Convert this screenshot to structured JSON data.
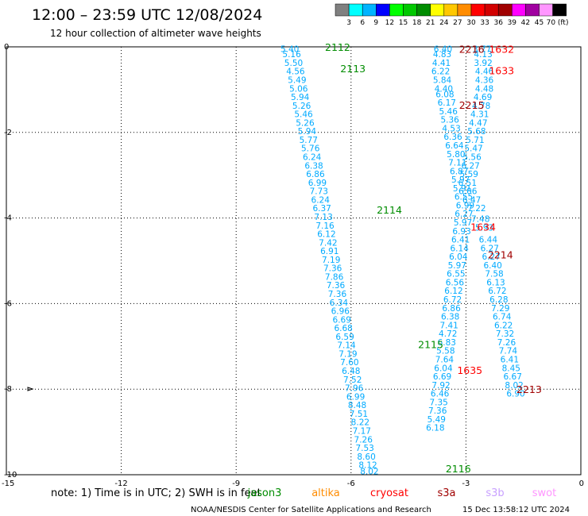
{
  "header": {
    "title": "12:00 – 23:59 UTC 12/08/2024",
    "subtitle": "12 hour collection of altimeter wave heights"
  },
  "colorbar": {
    "colors": [
      "#808080",
      "#00ffff",
      "#00b4ff",
      "#0000ff",
      "#00ff00",
      "#00c800",
      "#008c00",
      "#ffff00",
      "#ffc800",
      "#ff8c00",
      "#ff0000",
      "#d20000",
      "#a00000",
      "#ff00ff",
      "#a000a0",
      "#ff96ff",
      "#000000"
    ],
    "labels": [
      "3",
      "6",
      "9",
      "12",
      "15",
      "18",
      "21",
      "24",
      "27",
      "30",
      "33",
      "36",
      "39",
      "42",
      "45",
      "70 (ft)"
    ]
  },
  "footer": {
    "note": "note: 1) Time is in UTC; 2) SWH is in feet",
    "satellites": [
      {
        "name": "jason3",
        "color": "#008c00"
      },
      {
        "name": "altika",
        "color": "#ff8c00"
      },
      {
        "name": "cryosat",
        "color": "#ff0000"
      },
      {
        "name": "s3a",
        "color": "#a00000"
      },
      {
        "name": "s3b",
        "color": "#c8a0ff"
      },
      {
        "name": "swot",
        "color": "#ff96ff"
      }
    ],
    "credit": "NOAA/NESDIS Center for Satellite Applications and Research",
    "timestamp": "15 Dec 13:58:12 UTC 2024"
  },
  "chart_data": {
    "type": "scatter",
    "xlim": [
      -15,
      0
    ],
    "ylim": [
      -10,
      0
    ],
    "xticks": [
      "-15",
      "-12",
      "-9",
      "-6",
      "-3",
      "0"
    ],
    "yticks": [
      "0",
      "-2",
      "-4",
      "-6",
      "-8",
      "-10"
    ],
    "grid": true,
    "series": [
      {
        "color": "#00aaff",
        "points": [
          {
            "x": -7.6,
            "y": -0.05,
            "v": "5.40"
          },
          {
            "x": -7.55,
            "y": -0.17,
            "v": "5.16"
          },
          {
            "x": -7.5,
            "y": -0.37,
            "v": "5.50"
          },
          {
            "x": -7.45,
            "y": -0.57,
            "v": "4.56"
          },
          {
            "x": -7.41,
            "y": -0.77,
            "v": "5.49"
          },
          {
            "x": -7.37,
            "y": -0.97,
            "v": "5.06"
          },
          {
            "x": -7.33,
            "y": -1.17,
            "v": "5.94"
          },
          {
            "x": -7.29,
            "y": -1.37,
            "v": "5.26"
          },
          {
            "x": -7.24,
            "y": -1.57,
            "v": "5.46"
          },
          {
            "x": -7.2,
            "y": -1.77,
            "v": "5.26"
          },
          {
            "x": -7.15,
            "y": -1.97,
            "v": "5.94"
          },
          {
            "x": -7.11,
            "y": -2.17,
            "v": "5.77"
          },
          {
            "x": -7.06,
            "y": -2.37,
            "v": "5.76"
          },
          {
            "x": -7.02,
            "y": -2.57,
            "v": "6.24"
          },
          {
            "x": -6.97,
            "y": -2.77,
            "v": "6.38"
          },
          {
            "x": -6.93,
            "y": -2.97,
            "v": "6.86"
          },
          {
            "x": -6.88,
            "y": -3.17,
            "v": "6.99"
          },
          {
            "x": -6.84,
            "y": -3.37,
            "v": "7.73"
          },
          {
            "x": -6.8,
            "y": -3.57,
            "v": "6.24"
          },
          {
            "x": -6.76,
            "y": -3.77,
            "v": "6.37"
          },
          {
            "x": -6.72,
            "y": -3.97,
            "v": "7.13"
          },
          {
            "x": -6.68,
            "y": -4.17,
            "v": "7.16"
          },
          {
            "x": -6.64,
            "y": -4.37,
            "v": "6.12"
          },
          {
            "x": -6.6,
            "y": -4.57,
            "v": "7.42"
          },
          {
            "x": -6.56,
            "y": -4.77,
            "v": "6.91"
          },
          {
            "x": -6.52,
            "y": -4.97,
            "v": "7.19"
          },
          {
            "x": -6.48,
            "y": -5.17,
            "v": "7.36"
          },
          {
            "x": -6.44,
            "y": -5.37,
            "v": "7.86"
          },
          {
            "x": -6.4,
            "y": -5.57,
            "v": "7.36"
          },
          {
            "x": -6.36,
            "y": -5.77,
            "v": "7.36"
          },
          {
            "x": -6.32,
            "y": -5.97,
            "v": "6.34"
          },
          {
            "x": -6.28,
            "y": -6.17,
            "v": "6.96"
          },
          {
            "x": -6.24,
            "y": -6.37,
            "v": "6.69"
          },
          {
            "x": -6.2,
            "y": -6.57,
            "v": "6.68"
          },
          {
            "x": -6.16,
            "y": -6.77,
            "v": "6.59"
          },
          {
            "x": -6.12,
            "y": -6.97,
            "v": "7.14"
          },
          {
            "x": -6.08,
            "y": -7.17,
            "v": "7.19"
          },
          {
            "x": -6.04,
            "y": -7.37,
            "v": "7.60"
          },
          {
            "x": -6.0,
            "y": -7.57,
            "v": "6.48"
          },
          {
            "x": -5.96,
            "y": -7.77,
            "v": "7.52"
          },
          {
            "x": -5.92,
            "y": -7.97,
            "v": "7.96"
          },
          {
            "x": -5.88,
            "y": -8.17,
            "v": "6.99"
          },
          {
            "x": -5.84,
            "y": -8.37,
            "v": "8.48"
          },
          {
            "x": -5.8,
            "y": -8.57,
            "v": "7.51"
          },
          {
            "x": -5.76,
            "y": -8.77,
            "v": "8.22"
          },
          {
            "x": -5.72,
            "y": -8.97,
            "v": "7.17"
          },
          {
            "x": -5.68,
            "y": -9.17,
            "v": "7.26"
          },
          {
            "x": -5.64,
            "y": -9.37,
            "v": "7.53"
          },
          {
            "x": -5.6,
            "y": -9.57,
            "v": "8.60"
          },
          {
            "x": -5.56,
            "y": -9.77,
            "v": "8.12"
          },
          {
            "x": -5.52,
            "y": -9.92,
            "v": "8.02"
          },
          {
            "x": -3.6,
            "y": -0.05,
            "v": "6.40"
          },
          {
            "x": -3.62,
            "y": -0.17,
            "v": "4.83"
          },
          {
            "x": -3.64,
            "y": -0.37,
            "v": "4.41"
          },
          {
            "x": -3.66,
            "y": -0.57,
            "v": "6.22"
          },
          {
            "x": -3.62,
            "y": -0.77,
            "v": "5.84"
          },
          {
            "x": -3.58,
            "y": -0.97,
            "v": "4.40"
          },
          {
            "x": -3.55,
            "y": -1.1,
            "v": "6.08"
          },
          {
            "x": -3.5,
            "y": -1.3,
            "v": "6.17"
          },
          {
            "x": -3.46,
            "y": -1.5,
            "v": "5.46"
          },
          {
            "x": -3.42,
            "y": -1.7,
            "v": "5.36"
          },
          {
            "x": -3.38,
            "y": -1.9,
            "v": "4.53"
          },
          {
            "x": -3.34,
            "y": -2.1,
            "v": "6.36"
          },
          {
            "x": -3.3,
            "y": -2.3,
            "v": "6.64"
          },
          {
            "x": -3.26,
            "y": -2.5,
            "v": "5.80"
          },
          {
            "x": -3.22,
            "y": -2.7,
            "v": "7.11"
          },
          {
            "x": -3.18,
            "y": -2.9,
            "v": "6.87"
          },
          {
            "x": -3.14,
            "y": -3.1,
            "v": "5.97"
          },
          {
            "x": -3.1,
            "y": -3.3,
            "v": "5.91"
          },
          {
            "x": -3.06,
            "y": -3.5,
            "v": "6.55"
          },
          {
            "x": -3.02,
            "y": -3.7,
            "v": "6.99"
          },
          {
            "x": -3.05,
            "y": -3.9,
            "v": "6.27"
          },
          {
            "x": -3.08,
            "y": -4.1,
            "v": "5.97"
          },
          {
            "x": -3.11,
            "y": -4.3,
            "v": "6.93"
          },
          {
            "x": -3.14,
            "y": -4.5,
            "v": "6.41"
          },
          {
            "x": -3.17,
            "y": -4.7,
            "v": "6.14"
          },
          {
            "x": -3.2,
            "y": -4.9,
            "v": "6.04"
          },
          {
            "x": -3.23,
            "y": -5.1,
            "v": "5.97"
          },
          {
            "x": -3.26,
            "y": -5.3,
            "v": "6.55"
          },
          {
            "x": -3.29,
            "y": -5.5,
            "v": "6.56"
          },
          {
            "x": -3.32,
            "y": -5.7,
            "v": "6.12"
          },
          {
            "x": -3.35,
            "y": -5.9,
            "v": "6.72"
          },
          {
            "x": -3.38,
            "y": -6.1,
            "v": "6.86"
          },
          {
            "x": -3.41,
            "y": -6.3,
            "v": "6.38"
          },
          {
            "x": -3.44,
            "y": -6.5,
            "v": "7.41"
          },
          {
            "x": -3.47,
            "y": -6.7,
            "v": "4.72"
          },
          {
            "x": -3.5,
            "y": -6.9,
            "v": "6.83"
          },
          {
            "x": -3.53,
            "y": -7.1,
            "v": "5.58"
          },
          {
            "x": -3.56,
            "y": -7.3,
            "v": "7.64"
          },
          {
            "x": -3.59,
            "y": -7.5,
            "v": "6.04"
          },
          {
            "x": -3.62,
            "y": -7.7,
            "v": "6.69"
          },
          {
            "x": -3.65,
            "y": -7.9,
            "v": "7.92"
          },
          {
            "x": -3.68,
            "y": -8.1,
            "v": "6.46"
          },
          {
            "x": -3.71,
            "y": -8.3,
            "v": "7.35"
          },
          {
            "x": -3.74,
            "y": -8.5,
            "v": "7.36"
          },
          {
            "x": -3.77,
            "y": -8.7,
            "v": "5.49"
          },
          {
            "x": -3.8,
            "y": -8.9,
            "v": "6.18"
          },
          {
            "x": -2.58,
            "y": -0.05,
            "v": "3.77"
          },
          {
            "x": -2.55,
            "y": -0.17,
            "v": "4.13"
          },
          {
            "x": -2.55,
            "y": -0.37,
            "v": "3.92"
          },
          {
            "x": -2.52,
            "y": -0.57,
            "v": "4.46"
          },
          {
            "x": -2.52,
            "y": -0.77,
            "v": "4.36"
          },
          {
            "x": -2.52,
            "y": -0.97,
            "v": "4.48"
          },
          {
            "x": -2.56,
            "y": -1.17,
            "v": "4.69"
          },
          {
            "x": -2.6,
            "y": -1.37,
            "v": "4.78"
          },
          {
            "x": -2.64,
            "y": -1.57,
            "v": "4.31"
          },
          {
            "x": -2.68,
            "y": -1.77,
            "v": "4.47"
          },
          {
            "x": -2.72,
            "y": -1.97,
            "v": "5.68"
          },
          {
            "x": -2.76,
            "y": -2.17,
            "v": "5.71"
          },
          {
            "x": -2.8,
            "y": -2.37,
            "v": "5.47"
          },
          {
            "x": -2.84,
            "y": -2.57,
            "v": "5.56"
          },
          {
            "x": -2.88,
            "y": -2.77,
            "v": "6.27"
          },
          {
            "x": -2.92,
            "y": -2.97,
            "v": "5.59"
          },
          {
            "x": -2.96,
            "y": -3.17,
            "v": "6.51"
          },
          {
            "x": -2.95,
            "y": -3.37,
            "v": "6.06"
          },
          {
            "x": -2.85,
            "y": -3.57,
            "v": "6.47"
          },
          {
            "x": -2.72,
            "y": -3.77,
            "v": "7.22"
          },
          {
            "x": -2.62,
            "y": -4.02,
            "v": "7.48"
          },
          {
            "x": -2.52,
            "y": -4.22,
            "v": "5.93"
          },
          {
            "x": -2.42,
            "y": -4.5,
            "v": "6.44"
          },
          {
            "x": -2.38,
            "y": -4.7,
            "v": "6.27"
          },
          {
            "x": -2.34,
            "y": -4.9,
            "v": "6.27"
          },
          {
            "x": -2.3,
            "y": -5.1,
            "v": "6.40"
          },
          {
            "x": -2.26,
            "y": -5.3,
            "v": "7.58"
          },
          {
            "x": -2.22,
            "y": -5.5,
            "v": "6.13"
          },
          {
            "x": -2.18,
            "y": -5.7,
            "v": "6.72"
          },
          {
            "x": -2.14,
            "y": -5.9,
            "v": "6.28"
          },
          {
            "x": -2.1,
            "y": -6.1,
            "v": "7.29"
          },
          {
            "x": -2.06,
            "y": -6.3,
            "v": "6.74"
          },
          {
            "x": -2.02,
            "y": -6.5,
            "v": "6.22"
          },
          {
            "x": -1.98,
            "y": -6.7,
            "v": "7.32"
          },
          {
            "x": -1.94,
            "y": -6.9,
            "v": "7.26"
          },
          {
            "x": -1.9,
            "y": -7.1,
            "v": "7.74"
          },
          {
            "x": -1.86,
            "y": -7.3,
            "v": "6.41"
          },
          {
            "x": -1.82,
            "y": -7.5,
            "v": "8.45"
          },
          {
            "x": -1.78,
            "y": -7.7,
            "v": "6.67"
          },
          {
            "x": -1.74,
            "y": -7.9,
            "v": "8.02"
          },
          {
            "x": -1.7,
            "y": -8.1,
            "v": "6.90"
          }
        ]
      }
    ],
    "pass_labels": [
      {
        "x": -6.35,
        "y": 0.0,
        "text": "2112",
        "color": "#008c00"
      },
      {
        "x": -5.95,
        "y": -0.5,
        "text": "2113",
        "color": "#008c00"
      },
      {
        "x": -5.0,
        "y": -3.8,
        "text": "2114",
        "color": "#008c00"
      },
      {
        "x": -3.92,
        "y": -6.95,
        "text": "2115",
        "color": "#008c00"
      },
      {
        "x": -3.2,
        "y": -9.85,
        "text": "2116",
        "color": "#008c00"
      },
      {
        "x": -2.85,
        "y": -0.05,
        "text": "2216",
        "color": "#a00000"
      },
      {
        "x": -2.85,
        "y": -1.35,
        "text": "2215",
        "color": "#a00000"
      },
      {
        "x": -2.07,
        "y": -0.05,
        "text": "1632",
        "color": "#ff0000"
      },
      {
        "x": -2.07,
        "y": -0.55,
        "text": "1633",
        "color": "#ff0000"
      },
      {
        "x": -2.55,
        "y": -4.2,
        "text": "1634",
        "color": "#ff0000"
      },
      {
        "x": -2.1,
        "y": -4.85,
        "text": "2214",
        "color": "#a00000"
      },
      {
        "x": -2.9,
        "y": -7.55,
        "text": "1635",
        "color": "#ff0000"
      },
      {
        "x": -1.35,
        "y": -8.0,
        "text": "2213",
        "color": "#a00000"
      }
    ]
  }
}
